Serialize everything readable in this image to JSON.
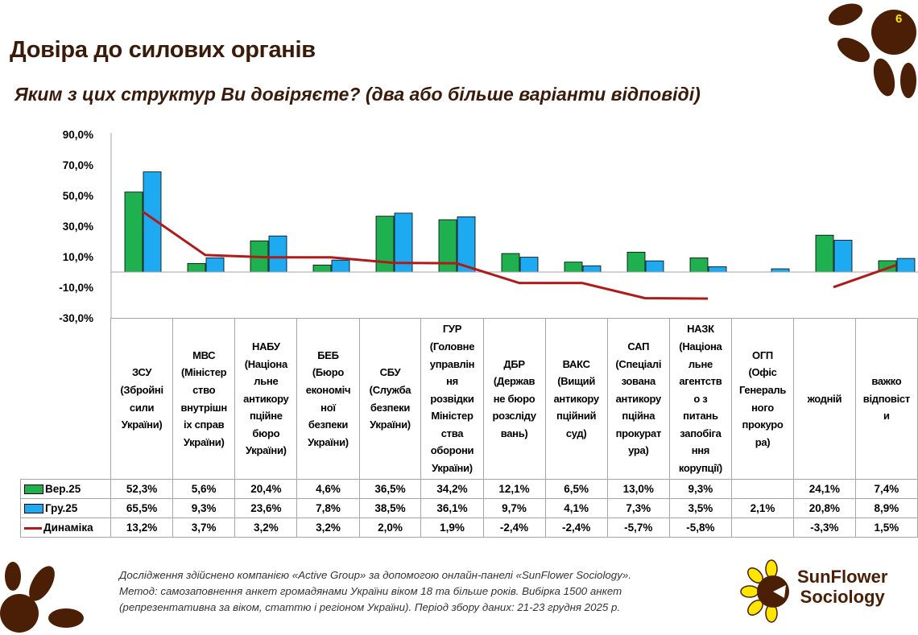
{
  "header": {
    "title": "Довіра до силових органів",
    "subtitle": "Яким з цих структур Ви довіряєте? (два або більше варіанти відповіді)",
    "page_number": "6"
  },
  "colors": {
    "series1": "#1fb050",
    "series2": "#1eaaf1",
    "line": "#b01a1a",
    "brand_brown": "#4a1f05",
    "brand_yellow": "#ffe600"
  },
  "chart_data": {
    "type": "bar",
    "title": "",
    "xlabel": "",
    "ylabel": "",
    "ylim": [
      -30,
      90
    ],
    "yticks": [
      "90,0%",
      "70,0%",
      "50,0%",
      "30,0%",
      "10,0%",
      "-10,0%",
      "-30,0%"
    ],
    "grid": false,
    "legend": "table-bottom-left",
    "categories": [
      "ЗСУ\n(Збройні\nсили\nУкраїни)",
      "МВС\n(Міністер\nство\nвнутрішн\nіх справ\nУкраїни)",
      "НАБУ\n(Націона\nльне\nантикору\nпційне\nбюро\nУкраїни)",
      "БЕБ\n(Бюро\nекономіч\nної\nбезпеки\nУкраїни)",
      "СБУ\n(Служба\nбезпеки\nУкраїни)",
      "ГУР\n(Головне\nуправлін\nня\nрозвідки\nМіністер\nства\nоборони\nУкраїни)",
      "ДБР\n(Держав\nне бюро\nрозсліду\nвань)",
      "ВАКС\n(Вищий\nантикору\nпційний\nсуд)",
      "САП\n(Спеціалі\nзована\nантикору\nпційна\nпрокурат\nура)",
      "НАЗК\n(Націона\nльне\nагентств\nо з\nпитань\nзапобіга\nння\nкорупції)",
      "ОГП\n(Офіс\nГенераль\nного\nпрокуро\nра)",
      "жодній",
      "важко\nвідповіст\nи"
    ],
    "series": [
      {
        "name": "Вер.25",
        "type": "bar",
        "values": [
          52.3,
          5.6,
          20.4,
          4.6,
          36.5,
          34.2,
          12.1,
          6.5,
          13.0,
          9.3,
          null,
          24.1,
          7.4
        ],
        "labels": [
          "52,3%",
          "5,6%",
          "20,4%",
          "4,6%",
          "36,5%",
          "34,2%",
          "12,1%",
          "6,5%",
          "13,0%",
          "9,3%",
          "",
          "24,1%",
          "7,4%"
        ]
      },
      {
        "name": "Гру.25",
        "type": "bar",
        "values": [
          65.5,
          9.3,
          23.6,
          7.8,
          38.5,
          36.1,
          9.7,
          4.1,
          7.3,
          3.5,
          2.1,
          20.8,
          8.9
        ],
        "labels": [
          "65,5%",
          "9,3%",
          "23,6%",
          "7,8%",
          "38,5%",
          "36,1%",
          "9,7%",
          "4,1%",
          "7,3%",
          "3,5%",
          "2,1%",
          "20,8%",
          "8,9%"
        ]
      },
      {
        "name": "Динаміка",
        "type": "line",
        "axis": "secondary",
        "values": [
          13.2,
          3.7,
          3.2,
          3.2,
          2.0,
          1.9,
          -2.4,
          -2.4,
          -5.7,
          -5.8,
          null,
          -3.3,
          1.5
        ],
        "labels": [
          "13,2%",
          "3,7%",
          "3,2%",
          "3,2%",
          "2,0%",
          "1,9%",
          "-2,4%",
          "-2,4%",
          "-5,7%",
          "-5,8%",
          "",
          "-3,3%",
          "1,5%"
        ]
      }
    ]
  },
  "footer": {
    "lines": [
      "Дослідження здійснено компанією «Active Group» за допомогою онлайн-панелі «SunFlower Sociology».",
      "Метод: самозаповнення анкет громадянами України віком 18 та більше років. Вибірка 1500 анкет",
      "(репрезентативна за віком, статтю і регіоном України). Період збору даних: 21-23 грудня 2025 р."
    ]
  },
  "logo": {
    "line1": "SunFlower",
    "line2": "Sociology"
  }
}
